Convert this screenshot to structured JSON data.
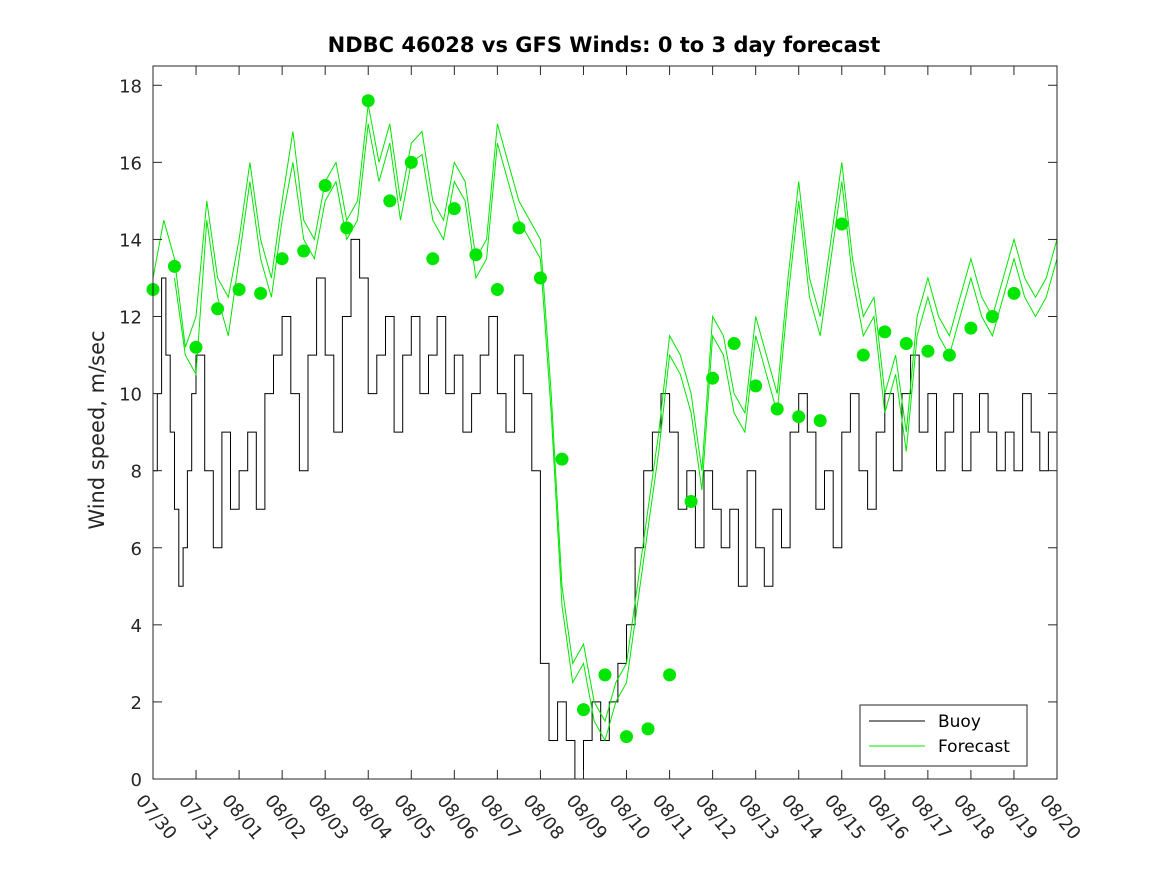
{
  "chart_data": {
    "type": "line",
    "title": "NDBC 46028 vs GFS Winds: 0 to 3 day forecast",
    "xlabel": "",
    "ylabel": "Wind speed, m/sec",
    "x_tick_labels": [
      "07/30",
      "07/31",
      "08/01",
      "08/02",
      "08/03",
      "08/04",
      "08/05",
      "08/06",
      "08/07",
      "08/08",
      "08/09",
      "08/10",
      "08/11",
      "08/12",
      "08/13",
      "08/14",
      "08/15",
      "08/16",
      "08/17",
      "08/18",
      "08/19",
      "08/20"
    ],
    "y_ticks": [
      0,
      2,
      4,
      6,
      8,
      10,
      12,
      14,
      16,
      18
    ],
    "xlim": [
      0,
      21
    ],
    "ylim": [
      0,
      18.5
    ],
    "grid": false,
    "legend": {
      "location": "bottom-right",
      "entries": [
        {
          "label": "Buoy",
          "color": "#000000"
        },
        {
          "label": "Forecast",
          "color": "#00e600"
        }
      ]
    },
    "series": [
      {
        "name": "Buoy",
        "color": "#000000",
        "x": [
          0,
          0.1,
          0.2,
          0.3,
          0.4,
          0.5,
          0.6,
          0.7,
          0.8,
          0.9,
          1.0,
          1.2,
          1.4,
          1.6,
          1.8,
          2.0,
          2.2,
          2.4,
          2.6,
          2.8,
          3.0,
          3.2,
          3.4,
          3.6,
          3.8,
          4.0,
          4.2,
          4.4,
          4.6,
          4.8,
          5.0,
          5.2,
          5.4,
          5.6,
          5.8,
          6.0,
          6.2,
          6.4,
          6.6,
          6.8,
          7.0,
          7.2,
          7.4,
          7.6,
          7.8,
          8.0,
          8.2,
          8.4,
          8.6,
          8.8,
          9.0,
          9.2,
          9.4,
          9.6,
          9.8,
          10.0,
          10.2,
          10.4,
          10.6,
          10.8,
          11.0,
          11.2,
          11.4,
          11.6,
          11.8,
          12.0,
          12.2,
          12.4,
          12.6,
          12.8,
          13.0,
          13.2,
          13.4,
          13.6,
          13.8,
          14.0,
          14.2,
          14.4,
          14.6,
          14.8,
          15.0,
          15.2,
          15.4,
          15.6,
          15.8,
          16.0,
          16.2,
          16.4,
          16.6,
          16.8,
          17.0,
          17.2,
          17.4,
          17.6,
          17.8,
          18.0,
          18.2,
          18.4,
          18.6,
          18.8,
          19.0,
          19.2,
          19.4,
          19.6,
          19.8,
          20.0,
          20.2,
          20.4,
          20.6,
          20.8,
          21.0
        ],
        "y": [
          8,
          10,
          13,
          11,
          9,
          7,
          5,
          6,
          8,
          10,
          11,
          8,
          6,
          9,
          7,
          8,
          9,
          7,
          10,
          11,
          12,
          10,
          8,
          11,
          13,
          11,
          9,
          12,
          14,
          13,
          10,
          11,
          12,
          9,
          11,
          12,
          10,
          11,
          12,
          10,
          11,
          9,
          10,
          11,
          12,
          10,
          9,
          11,
          10,
          8,
          3,
          1,
          2,
          1,
          0,
          1,
          2,
          1,
          2,
          3,
          4,
          6,
          8,
          9,
          10,
          9,
          7,
          8,
          6,
          8,
          7,
          6,
          7,
          5,
          8,
          6,
          5,
          7,
          6,
          9,
          10,
          9,
          7,
          8,
          6,
          9,
          10,
          8,
          7,
          9,
          10,
          8,
          10,
          11,
          9,
          10,
          8,
          9,
          10,
          8,
          9,
          10,
          9,
          8,
          9,
          8,
          10,
          9,
          8,
          9,
          8
        ]
      },
      {
        "name": "Forecast",
        "color": "#00e600",
        "x": [
          0,
          0.25,
          0.5,
          0.75,
          1.0,
          1.25,
          1.5,
          1.75,
          2.0,
          2.25,
          2.5,
          2.75,
          3.0,
          3.25,
          3.5,
          3.75,
          4.0,
          4.25,
          4.5,
          4.75,
          5.0,
          5.25,
          5.5,
          5.75,
          6.0,
          6.25,
          6.5,
          6.75,
          7.0,
          7.25,
          7.5,
          7.75,
          8.0,
          8.25,
          8.5,
          8.75,
          9.0,
          9.25,
          9.5,
          9.75,
          10.0,
          10.25,
          10.5,
          10.75,
          11.0,
          11.25,
          11.5,
          11.75,
          12.0,
          12.25,
          12.5,
          12.75,
          13.0,
          13.25,
          13.5,
          13.75,
          14.0,
          14.25,
          14.5,
          14.75,
          15.0,
          15.25,
          15.5,
          15.75,
          16.0,
          16.25,
          16.5,
          16.75,
          17.0,
          17.25,
          17.5,
          17.75,
          18.0,
          18.25,
          18.5,
          18.75,
          19.0,
          19.25,
          19.5,
          19.75,
          20.0,
          20.25,
          20.5,
          20.75,
          21.0
        ],
        "y": [
          13,
          14.5,
          13.5,
          11.2,
          12,
          15,
          13,
          12.5,
          14,
          16,
          14,
          13,
          15,
          16.8,
          14.5,
          14,
          15.5,
          16,
          14.5,
          15,
          17.5,
          16,
          17,
          15,
          16.5,
          16.8,
          15,
          14.5,
          16,
          15.5,
          13.5,
          14,
          17,
          16,
          15,
          14.5,
          14,
          10,
          5,
          3,
          3.5,
          2,
          1.5,
          2.5,
          3,
          5,
          7,
          9,
          11.5,
          11,
          10,
          8,
          12,
          11.5,
          10,
          9.5,
          12,
          11,
          10,
          13,
          15.5,
          13,
          12,
          14,
          16,
          13.5,
          12,
          12.5,
          10,
          11,
          9,
          12,
          13,
          12,
          11.5,
          12.5,
          13.5,
          12.5,
          12,
          13,
          14,
          13,
          12.5,
          13,
          14
        ]
      },
      {
        "name": "Forecast",
        "color": "#00e600",
        "x": [
          0.5,
          0.75,
          1.0,
          1.25,
          1.5,
          1.75,
          2.0,
          2.25,
          2.5,
          2.75,
          3.0,
          3.25,
          3.5,
          3.75,
          4.0,
          4.25,
          4.5,
          4.75,
          5.0,
          5.25,
          5.5,
          5.75,
          6.0,
          6.25,
          6.5,
          6.75,
          7.0,
          7.25,
          7.5,
          7.75,
          8.0,
          8.25,
          8.5,
          8.75,
          9.0,
          9.25,
          9.5,
          9.75,
          10.0,
          10.25,
          10.5,
          10.75,
          11.0,
          11.25,
          11.5,
          11.75,
          12.0,
          12.25,
          12.5,
          12.75,
          13.0,
          13.25,
          13.5,
          13.75,
          14.0,
          14.25,
          14.5,
          14.75,
          15.0,
          15.25,
          15.5,
          15.75,
          16.0,
          16.25,
          16.5,
          16.75,
          17.0,
          17.25,
          17.5,
          17.75,
          18.0,
          18.25,
          18.5,
          18.75,
          19.0,
          19.25,
          19.5,
          19.75,
          20.0,
          20.25,
          20.5,
          20.75,
          21.0
        ],
        "y": [
          13,
          11,
          10.5,
          14.5,
          12.5,
          11.5,
          13.5,
          15.5,
          13.5,
          12.5,
          14.5,
          16,
          14,
          13.5,
          15,
          15.5,
          14,
          14.5,
          17,
          15.5,
          16.5,
          14.5,
          16,
          16.2,
          14.5,
          14,
          15.5,
          15,
          13,
          13.5,
          16.5,
          15.5,
          14.5,
          14,
          13.5,
          9.5,
          4.5,
          2.5,
          3,
          1.5,
          1,
          2,
          2.5,
          4.5,
          6.5,
          8.5,
          11,
          10.5,
          9.5,
          7.5,
          11.5,
          11,
          9.5,
          9,
          11.5,
          10.5,
          9.5,
          12.5,
          15,
          12.5,
          11.5,
          13.5,
          15.5,
          13,
          11.5,
          12,
          9.5,
          10.5,
          8.5,
          11.5,
          12.5,
          11.5,
          11,
          12,
          13,
          12,
          11.5,
          12.5,
          13.5,
          12.5,
          12,
          12.5,
          13.5
        ]
      }
    ],
    "markers": {
      "name": "Forecast mean",
      "color": "#00e600",
      "x": [
        0,
        0.5,
        1,
        1.5,
        2,
        2.5,
        3,
        3.5,
        4,
        4.5,
        5,
        5.5,
        6,
        6.5,
        7,
        7.5,
        8,
        8.5,
        9,
        9.5,
        10,
        10.5,
        11,
        11.5,
        12,
        12.5,
        13,
        13.5,
        14,
        14.5,
        15,
        15.5,
        16,
        16.5,
        17,
        17.5,
        18,
        18.5,
        19,
        19.5,
        20
      ],
      "y": [
        12.7,
        13.3,
        11.2,
        12.2,
        12.7,
        12.6,
        13.5,
        13.7,
        15.4,
        14.3,
        17.6,
        15,
        16,
        13.5,
        14.8,
        13.6,
        12.7,
        14.3,
        13,
        8.3,
        1.8,
        2.7,
        1.1,
        1.3,
        2.7,
        7.2,
        10.4,
        11.3,
        10.2,
        9.6,
        9.4,
        9.3,
        14.4,
        11,
        11.6,
        11.3,
        11.1,
        11,
        11.7,
        12,
        12.6
      ]
    }
  }
}
